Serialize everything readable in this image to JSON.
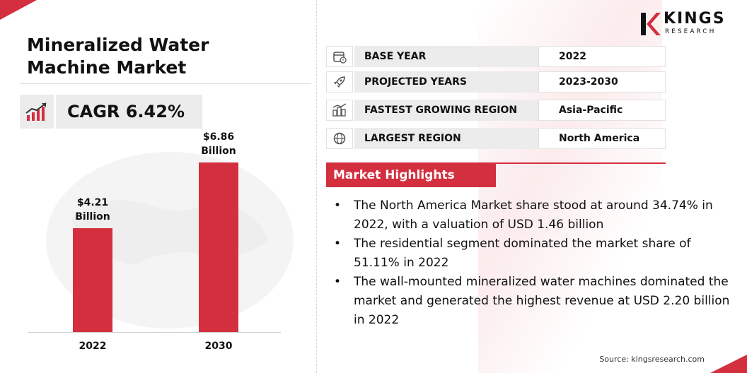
{
  "title": {
    "line1": "Mineralized Water",
    "line2": "Machine Market"
  },
  "cagr": {
    "text": "CAGR 6.42%",
    "icon": "growth-chart-icon"
  },
  "chart_data": {
    "type": "bar",
    "categories": [
      "2022",
      "2030"
    ],
    "values": [
      4.21,
      6.86
    ],
    "data_labels": [
      {
        "value": "$4.21",
        "unit": "Billion"
      },
      {
        "value": "$6.86",
        "unit": "Billion"
      }
    ],
    "color": "#d32f3f",
    "ylim": [
      0,
      8
    ],
    "grid": false
  },
  "logo": {
    "name": "KINGS",
    "sub": "RESEARCH"
  },
  "info": [
    {
      "icon": "calendar-icon",
      "label": "BASE YEAR",
      "value": "2022"
    },
    {
      "icon": "rocket-icon",
      "label": "PROJECTED YEARS",
      "value": "2023-2030"
    },
    {
      "icon": "city-growth-icon",
      "label": "FASTEST GROWING REGION",
      "value": "Asia-Pacific"
    },
    {
      "icon": "globe-icon",
      "label": "LARGEST REGION",
      "value": "North America"
    }
  ],
  "highlights": {
    "title": "Market Highlights",
    "items": [
      "The North America Market share stood at around 34.74% in 2022, with a valuation of USD 1.46 billion",
      "The residential segment dominated the market share of 51.11% in 2022",
      "The wall-mounted mineralized water machines dominated the market and generated the highest revenue at USD 2.20 billion in 2022"
    ],
    "bullet": "•"
  },
  "source": "Source: kingsresearch.com",
  "colors": {
    "accent": "#d32f3f",
    "panel": "#ececec"
  }
}
